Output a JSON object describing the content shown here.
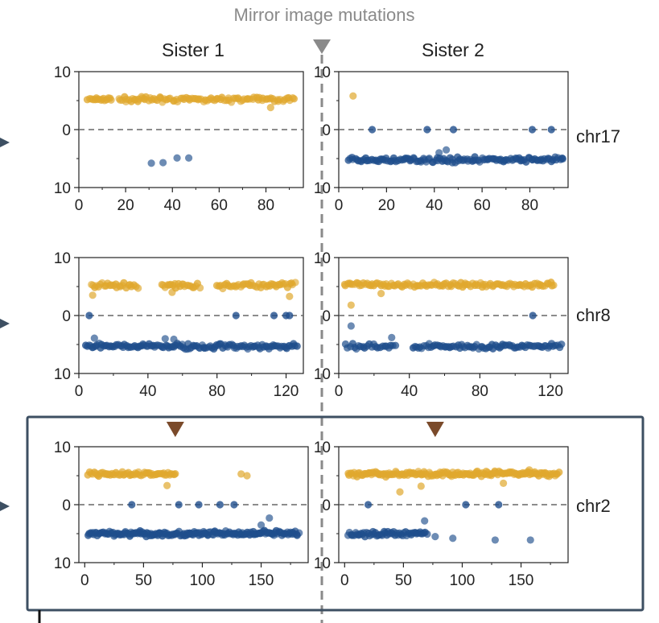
{
  "figure_title": "Mirror image mutations",
  "colors": {
    "upper": "#e0a82e",
    "lower": "#1f4e8c",
    "divider": "#8a8a8a",
    "highlight_box": "#3d4f62",
    "marker": "#7a4a2a",
    "zero_line": "#666666"
  },
  "chart_data": [
    {
      "type": "scatter",
      "chromosome": "chr17",
      "column": "Sister 1",
      "xlim": [
        0,
        96
      ],
      "xticks": [
        0,
        20,
        40,
        60,
        80
      ],
      "ylim": [
        -10,
        10
      ],
      "yticklabels": [
        "10",
        "0",
        "10"
      ],
      "upper_band": {
        "level": 5.2,
        "spread": 0.6,
        "segments": [
          [
            4,
            14,
            16
          ],
          [
            17,
            28,
            16
          ],
          [
            28,
            92,
            80
          ]
        ]
      },
      "lower_band": null,
      "upper_points": [
        {
          "x": 82,
          "y": 3.8
        }
      ],
      "lower_points": [
        {
          "x": 31,
          "y": -5.8
        },
        {
          "x": 36,
          "y": -5.7
        },
        {
          "x": 42,
          "y": -4.9
        },
        {
          "x": 47,
          "y": -4.9
        }
      ],
      "zero_points": []
    },
    {
      "type": "scatter",
      "chromosome": "chr17",
      "column": "Sister 2",
      "xlim": [
        0,
        96
      ],
      "xticks": [
        0,
        20,
        40,
        60,
        80
      ],
      "ylim": [
        -10,
        10
      ],
      "yticklabels": [
        "10",
        "0",
        "10"
      ],
      "upper_band": null,
      "lower_band": {
        "level": -5.2,
        "spread": 0.6,
        "segments": [
          [
            4,
            94,
            130
          ]
        ]
      },
      "upper_points": [
        {
          "x": 6,
          "y": 5.8
        }
      ],
      "lower_points": [
        {
          "x": 45,
          "y": -3.5
        },
        {
          "x": 42,
          "y": -4.0
        }
      ],
      "zero_points": [
        {
          "x": 14
        },
        {
          "x": 37
        },
        {
          "x": 48
        },
        {
          "x": 81
        },
        {
          "x": 89
        }
      ]
    },
    {
      "type": "scatter",
      "chromosome": "chr8",
      "column": "Sister 1",
      "xlim": [
        0,
        130
      ],
      "xticks": [
        0,
        40,
        80,
        120
      ],
      "ylim": [
        -10,
        10
      ],
      "yticklabels": [
        "10",
        "0",
        "10"
      ],
      "upper_band": {
        "level": 5.2,
        "spread": 0.7,
        "segments": [
          [
            7,
            34,
            26
          ],
          [
            48,
            70,
            22
          ],
          [
            80,
            125,
            44
          ]
        ]
      },
      "lower_band": {
        "level": -5.3,
        "spread": 0.7,
        "segments": [
          [
            4,
            126,
            130
          ]
        ]
      },
      "upper_points": [
        {
          "x": 8,
          "y": 3.5
        },
        {
          "x": 122,
          "y": 3.3
        },
        {
          "x": 54,
          "y": 4.0
        }
      ],
      "lower_points": [
        {
          "x": 9,
          "y": -3.9
        },
        {
          "x": 50,
          "y": -4.0
        },
        {
          "x": 55,
          "y": -4.1
        }
      ],
      "zero_points": [
        {
          "x": 6
        },
        {
          "x": 91
        },
        {
          "x": 113
        },
        {
          "x": 120
        },
        {
          "x": 122
        }
      ]
    },
    {
      "type": "scatter",
      "chromosome": "chr8",
      "column": "Sister 2",
      "xlim": [
        0,
        130
      ],
      "xticks": [
        0,
        40,
        80,
        120
      ],
      "ylim": [
        -10,
        10
      ],
      "yticklabels": [
        "10",
        "0",
        "10"
      ],
      "upper_band": {
        "level": 5.3,
        "spread": 0.6,
        "segments": [
          [
            3,
            122,
            120
          ]
        ]
      },
      "lower_band": {
        "level": -5.3,
        "spread": 0.6,
        "segments": [
          [
            4,
            32,
            24
          ],
          [
            42,
            126,
            80
          ]
        ]
      },
      "upper_points": [
        {
          "x": 7,
          "y": 1.8
        },
        {
          "x": 24,
          "y": 3.8
        }
      ],
      "lower_points": [
        {
          "x": 7,
          "y": -1.8
        },
        {
          "x": 30,
          "y": -3.8
        }
      ],
      "zero_points": [
        {
          "x": 110
        }
      ]
    },
    {
      "type": "scatter",
      "chromosome": "chr2",
      "column": "Sister 1",
      "xlim": [
        -5,
        190
      ],
      "xticks": [
        0,
        50,
        100,
        150
      ],
      "ylim": [
        -10,
        10
      ],
      "yticklabels": [
        "10",
        "0",
        "10"
      ],
      "upper_band": {
        "level": 5.3,
        "spread": 0.6,
        "segments": [
          [
            3,
            77,
            60
          ]
        ]
      },
      "lower_band": {
        "level": -5.0,
        "spread": 0.6,
        "segments": [
          [
            3,
            182,
            180
          ]
        ]
      },
      "upper_points": [
        {
          "x": 70,
          "y": 3.3
        },
        {
          "x": 133,
          "y": 5.3
        },
        {
          "x": 138,
          "y": 5.0
        }
      ],
      "lower_points": [
        {
          "x": 157,
          "y": -2.3
        },
        {
          "x": 150,
          "y": -3.5
        }
      ],
      "zero_points": [
        {
          "x": 40
        },
        {
          "x": 80
        },
        {
          "x": 97
        },
        {
          "x": 115
        },
        {
          "x": 127
        }
      ]
    },
    {
      "type": "scatter",
      "chromosome": "chr2",
      "column": "Sister 2",
      "xlim": [
        -5,
        190
      ],
      "xticks": [
        0,
        50,
        100,
        150
      ],
      "ylim": [
        -10,
        10
      ],
      "yticklabels": [
        "10",
        "0",
        "10"
      ],
      "upper_band": {
        "level": 5.3,
        "spread": 0.6,
        "segments": [
          [
            3,
            182,
            170
          ]
        ]
      },
      "lower_band": {
        "level": -5.0,
        "spread": 0.6,
        "segments": [
          [
            3,
            70,
            56
          ]
        ]
      },
      "upper_points": [
        {
          "x": 47,
          "y": 2.2
        },
        {
          "x": 65,
          "y": 3.2
        },
        {
          "x": 135,
          "y": 3.7
        },
        {
          "x": 157,
          "y": 6.0
        }
      ],
      "lower_points": [
        {
          "x": 77,
          "y": -5.5
        },
        {
          "x": 92,
          "y": -5.8
        },
        {
          "x": 128,
          "y": -6.1
        },
        {
          "x": 158,
          "y": -6.1
        },
        {
          "x": 68,
          "y": -2.8
        }
      ],
      "zero_points": [
        {
          "x": 20
        },
        {
          "x": 103
        },
        {
          "x": 131
        }
      ]
    }
  ],
  "row_labels": [
    "chr17",
    "chr8",
    "chr2"
  ],
  "column_titles": [
    "Sister 1",
    "Sister 2"
  ],
  "highlight_markers": [
    {
      "row": "chr2",
      "column": "Sister 1",
      "x": 77
    },
    {
      "row": "chr2",
      "column": "Sister 2",
      "x": 77
    }
  ]
}
